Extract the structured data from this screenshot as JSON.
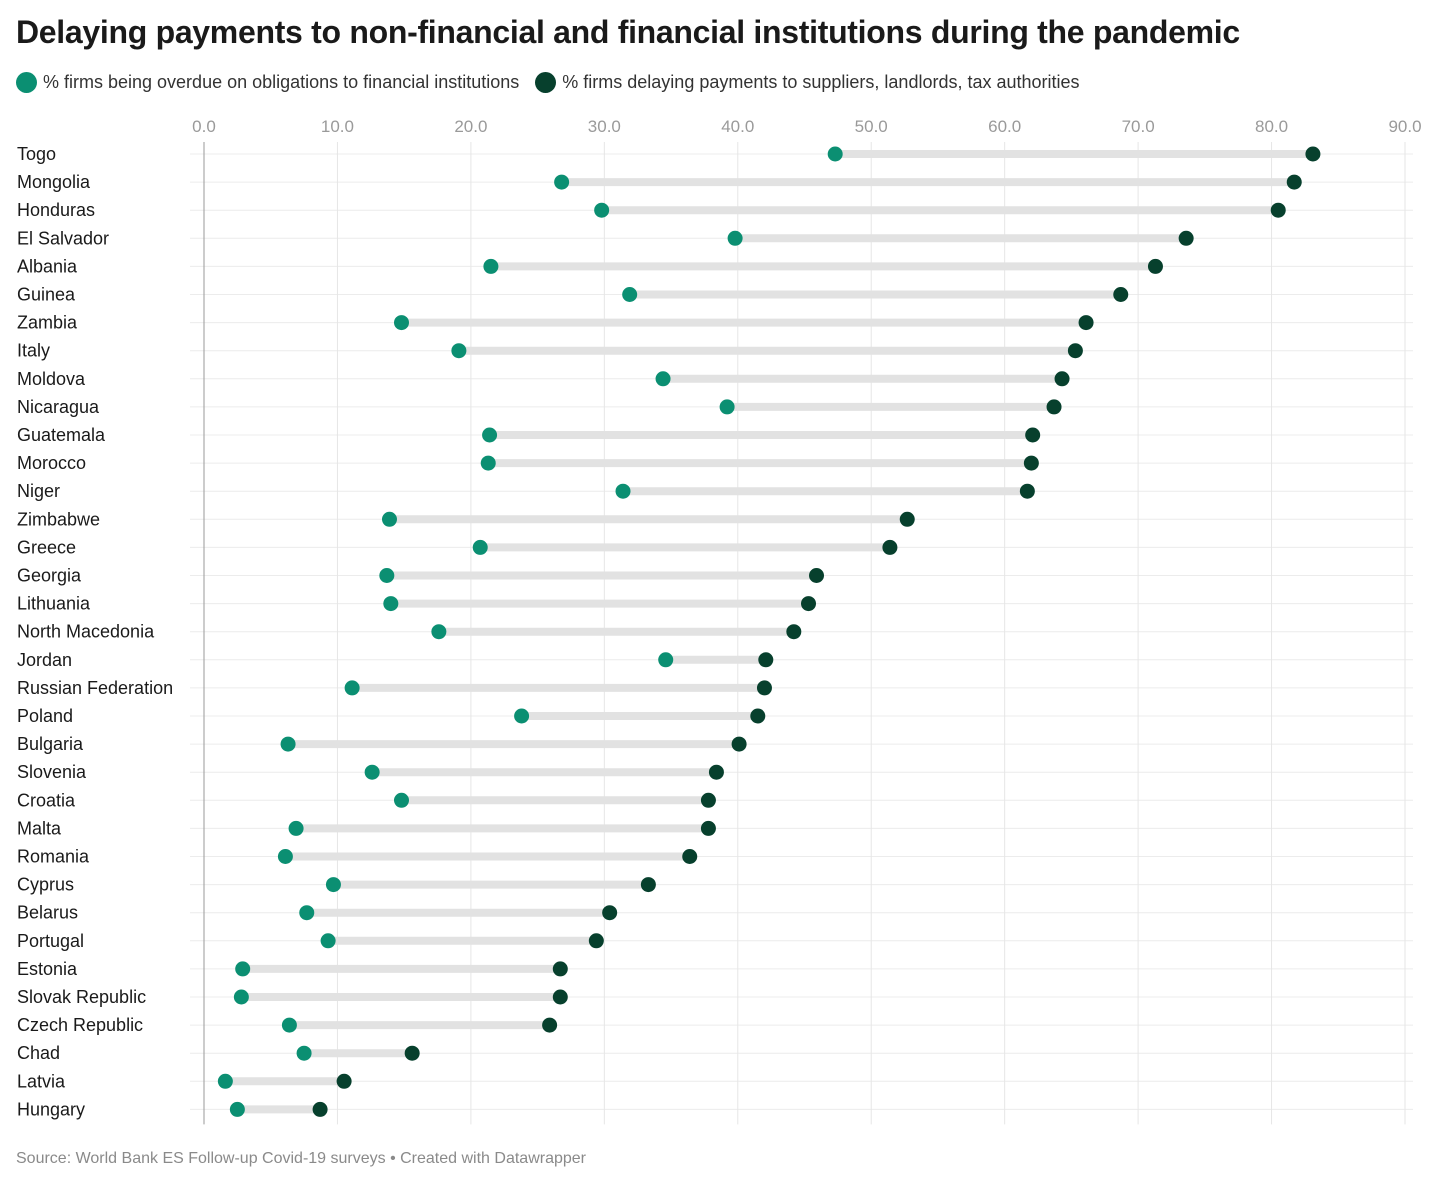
{
  "title": "Delaying payments to non-financial and financial institutions during the pandemic",
  "legend": [
    {
      "label": "% firms being overdue on obligations to financial institutions",
      "color": "#0b8f72"
    },
    {
      "label": "% firms delaying payments to suppliers, landlords, tax authorities",
      "color": "#07402d"
    }
  ],
  "footer": "Source: World Bank ES Follow-up Covid-19 surveys • Created with Datawrapper",
  "chart_data": {
    "type": "scatter",
    "subtype": "dumbbell",
    "xlim": [
      0,
      90
    ],
    "ticks": [
      "0.0",
      "10.0",
      "20.0",
      "30.0",
      "40.0",
      "50.0",
      "60.0",
      "70.0",
      "80.0",
      "90.0"
    ],
    "grid": true,
    "legend_position": "top",
    "colors": {
      "financial": "#0b8f72",
      "suppliers": "#07402d",
      "connector": "#e2e2e2"
    },
    "series": [
      {
        "name": "% firms being overdue on obligations to financial institutions",
        "key": "financial"
      },
      {
        "name": "% firms delaying payments to suppliers, landlords, tax authorities",
        "key": "suppliers"
      }
    ],
    "rows": [
      {
        "country": "Togo",
        "financial": 47.3,
        "suppliers": 83.1
      },
      {
        "country": "Mongolia",
        "financial": 26.8,
        "suppliers": 81.7
      },
      {
        "country": "Honduras",
        "financial": 29.8,
        "suppliers": 80.5
      },
      {
        "country": "El Salvador",
        "financial": 39.8,
        "suppliers": 73.6
      },
      {
        "country": "Albania",
        "financial": 21.5,
        "suppliers": 71.3
      },
      {
        "country": "Guinea",
        "financial": 31.9,
        "suppliers": 68.7
      },
      {
        "country": "Zambia",
        "financial": 14.8,
        "suppliers": 66.1
      },
      {
        "country": "Italy",
        "financial": 19.1,
        "suppliers": 65.3
      },
      {
        "country": "Moldova",
        "financial": 34.4,
        "suppliers": 64.3
      },
      {
        "country": "Nicaragua",
        "financial": 39.2,
        "suppliers": 63.7
      },
      {
        "country": "Guatemala",
        "financial": 21.4,
        "suppliers": 62.1
      },
      {
        "country": "Morocco",
        "financial": 21.3,
        "suppliers": 62.0
      },
      {
        "country": "Niger",
        "financial": 31.4,
        "suppliers": 61.7
      },
      {
        "country": "Zimbabwe",
        "financial": 13.9,
        "suppliers": 52.7
      },
      {
        "country": "Greece",
        "financial": 20.7,
        "suppliers": 51.4
      },
      {
        "country": "Georgia",
        "financial": 13.7,
        "suppliers": 45.9
      },
      {
        "country": "Lithuania",
        "financial": 14.0,
        "suppliers": 45.3
      },
      {
        "country": "North Macedonia",
        "financial": 17.6,
        "suppliers": 44.2
      },
      {
        "country": "Jordan",
        "financial": 34.6,
        "suppliers": 42.1
      },
      {
        "country": "Russian Federation",
        "financial": 11.1,
        "suppliers": 42.0
      },
      {
        "country": "Poland",
        "financial": 23.8,
        "suppliers": 41.5
      },
      {
        "country": "Bulgaria",
        "financial": 6.3,
        "suppliers": 40.1
      },
      {
        "country": "Slovenia",
        "financial": 12.6,
        "suppliers": 38.4
      },
      {
        "country": "Croatia",
        "financial": 14.8,
        "suppliers": 37.8
      },
      {
        "country": "Malta",
        "financial": 6.9,
        "suppliers": 37.8
      },
      {
        "country": "Romania",
        "financial": 6.1,
        "suppliers": 36.4
      },
      {
        "country": "Cyprus",
        "financial": 9.7,
        "suppliers": 33.3
      },
      {
        "country": "Belarus",
        "financial": 7.7,
        "suppliers": 30.4
      },
      {
        "country": "Portugal",
        "financial": 9.3,
        "suppliers": 29.4
      },
      {
        "country": "Estonia",
        "financial": 2.9,
        "suppliers": 26.7
      },
      {
        "country": "Slovak Republic",
        "financial": 2.8,
        "suppliers": 26.7
      },
      {
        "country": "Czech Republic",
        "financial": 6.4,
        "suppliers": 25.9
      },
      {
        "country": "Chad",
        "financial": 7.5,
        "suppliers": 15.6
      },
      {
        "country": "Latvia",
        "financial": 1.6,
        "suppliers": 10.5
      },
      {
        "country": "Hungary",
        "financial": 2.5,
        "suppliers": 8.7
      }
    ]
  }
}
